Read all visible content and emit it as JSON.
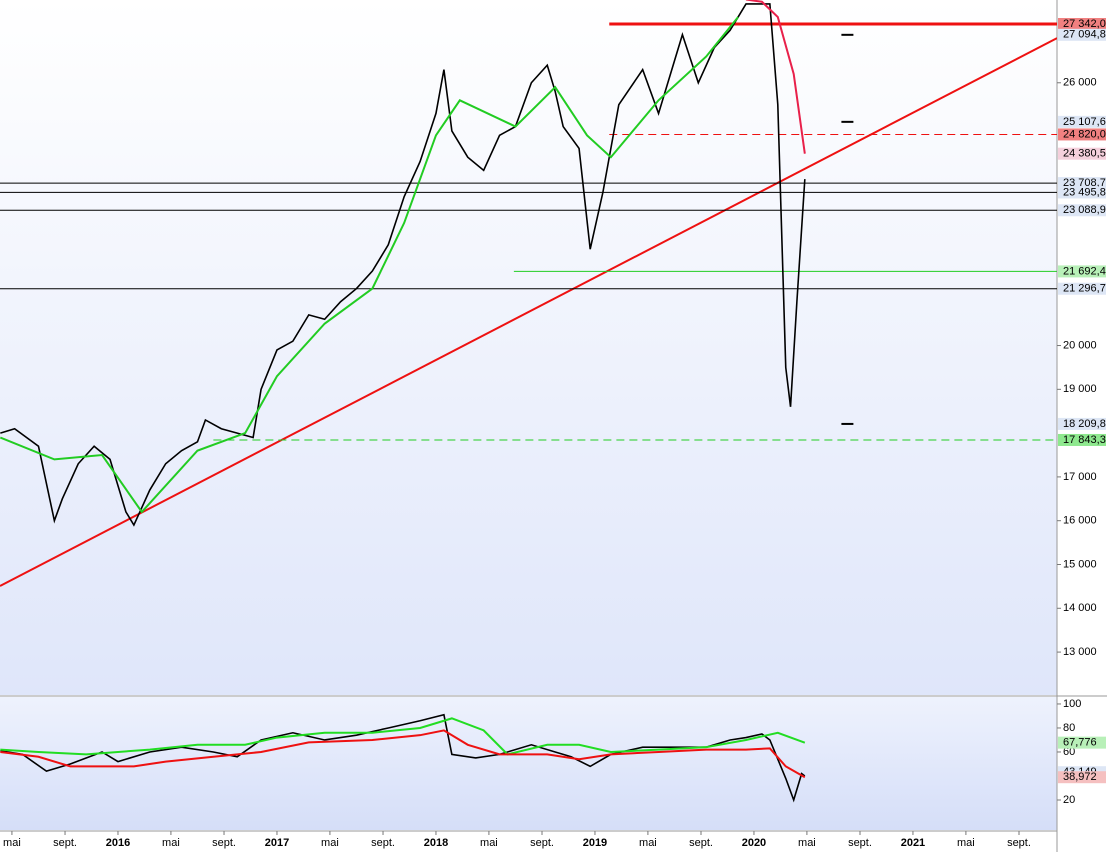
{
  "chart_data": [
    {
      "type": "line",
      "xlim": [
        2015.258,
        2021.906
      ],
      "ylim": [
        12020,
        27890
      ],
      "yticks": [
        {
          "value": 13000,
          "label": "13 000"
        },
        {
          "value": 14000,
          "label": "14 000"
        },
        {
          "value": 15000,
          "label": "15 000"
        },
        {
          "value": 16000,
          "label": "16 000"
        },
        {
          "value": 17000,
          "label": "17 000"
        },
        {
          "value": 19000,
          "label": "19 000"
        },
        {
          "value": 20000,
          "label": "20 000"
        },
        {
          "value": 26000,
          "label": "26 000"
        }
      ],
      "series": [
        {
          "name": "price",
          "color": "#000000",
          "x": [
            2015.26,
            2015.35,
            2015.5,
            2015.6,
            2015.65,
            2015.75,
            2015.85,
            2015.95,
            2016.05,
            2016.1,
            2016.2,
            2016.3,
            2016.4,
            2016.5,
            2016.55,
            2016.65,
            2016.75,
            2016.85,
            2016.9,
            2017.0,
            2017.1,
            2017.2,
            2017.3,
            2017.4,
            2017.5,
            2017.6,
            2017.7,
            2017.8,
            2017.9,
            2018.0,
            2018.05,
            2018.1,
            2018.2,
            2018.3,
            2018.4,
            2018.5,
            2018.6,
            2018.7,
            2018.75,
            2018.8,
            2018.9,
            2018.97,
            2019.05,
            2019.15,
            2019.3,
            2019.4,
            2019.5,
            2019.55,
            2019.65,
            2019.75,
            2019.85,
            2019.95,
            2020.1,
            2020.15,
            2020.2,
            2020.23,
            2020.27,
            2020.32
          ],
          "values": [
            18000,
            18100,
            17700,
            16000,
            16500,
            17300,
            17700,
            17400,
            16200,
            15900,
            16700,
            17300,
            17600,
            17800,
            18300,
            18100,
            18000,
            17900,
            19000,
            19900,
            20100,
            20700,
            20600,
            21000,
            21300,
            21700,
            22300,
            23400,
            24200,
            25300,
            26300,
            24900,
            24300,
            24000,
            24800,
            25000,
            26000,
            26400,
            25800,
            25000,
            24500,
            22200,
            23500,
            25500,
            26300,
            25300,
            26500,
            27100,
            26000,
            26800,
            27200,
            27800,
            27800,
            25500,
            19500,
            18600,
            21000,
            23800
          ]
        },
        {
          "name": "ma",
          "color": "#22cc22",
          "x": [
            2015.26,
            2015.6,
            2015.9,
            2016.15,
            2016.5,
            2016.8,
            2017.0,
            2017.3,
            2017.6,
            2017.8,
            2018.0,
            2018.15,
            2018.5,
            2018.75,
            2018.95,
            2019.1,
            2019.4,
            2019.7,
            2019.9
          ],
          "values": [
            17900,
            17400,
            17500,
            16200,
            17600,
            18000,
            19300,
            20500,
            21300,
            22800,
            24800,
            25600,
            25000,
            25900,
            24800,
            24300,
            25600,
            26600,
            27500
          ]
        },
        {
          "name": "ma-down",
          "color": "#e8204a",
          "x": [
            2019.95,
            2020.05,
            2020.15,
            2020.25,
            2020.32
          ],
          "values": [
            27900,
            27850,
            27500,
            26200,
            24380.5
          ]
        }
      ],
      "trendline": {
        "x": [
          2015.258,
          2021.906
        ],
        "values": [
          14510,
          27020
        ],
        "color": "#ee1111"
      },
      "levels": [
        {
          "value": 27342.0,
          "label": "27 342,0",
          "color": "#ee1111",
          "from": 2019.09,
          "style": "thick",
          "bg": "#f08080"
        },
        {
          "value": 27094.8,
          "label": "27 094,8",
          "color": "#000000",
          "from": 2020.55,
          "style": "tick",
          "bg": "#dde6f5"
        },
        {
          "value": 25107.6,
          "label": "25 107,6",
          "color": "#000000",
          "from": 2020.55,
          "style": "tick",
          "bg": "#dde6f5"
        },
        {
          "value": 24820.0,
          "label": "24 820,0",
          "color": "#ee1111",
          "from": 2019.09,
          "style": "dashed",
          "bg": "#f08080"
        },
        {
          "value": 24380.5,
          "label": "24 380,5",
          "color": "#e8204a",
          "from": 2021.906,
          "style": "none",
          "bg": "#f5d0dc"
        },
        {
          "value": 23708.7,
          "label": "23 708,7",
          "color": "#000000",
          "from": 2015.258,
          "style": "solid",
          "bg": "#dde6f5"
        },
        {
          "value": 23495.8,
          "label": "23 495,8",
          "color": "#000000",
          "from": 2015.258,
          "style": "solid",
          "bg": "#dde6f5"
        },
        {
          "value": 23088.9,
          "label": "23 088,9",
          "color": "#000000",
          "from": 2015.258,
          "style": "solid",
          "bg": "#dde6f5"
        },
        {
          "value": 21692.4,
          "label": "21 692,4",
          "color": "#22cc22",
          "from": 2018.49,
          "style": "solid",
          "bg": "#b8f0b8"
        },
        {
          "value": 21296.7,
          "label": "21 296,7",
          "color": "#000000",
          "from": 2015.258,
          "style": "solid",
          "bg": "#dde6f5"
        },
        {
          "value": 18209.8,
          "label": "18 209,8",
          "color": "#000000",
          "from": 2020.55,
          "style": "tick",
          "bg": "#dde6f5"
        },
        {
          "value": 17843.3,
          "label": "17 843,3",
          "color": "#22cc22",
          "from": 2016.6,
          "style": "dashed",
          "bg": "#8ee88e"
        }
      ]
    },
    {
      "type": "line",
      "xlim": [
        2015.258,
        2021.906
      ],
      "ylim": [
        -5,
        105.8
      ],
      "yticks": [
        20,
        60,
        80,
        100
      ],
      "xticks": [
        {
          "value": 2015.333,
          "label": "mai"
        },
        {
          "value": 2015.667,
          "label": "sept."
        },
        {
          "value": 2016,
          "label": "2016"
        },
        {
          "value": 2016.333,
          "label": "mai"
        },
        {
          "value": 2016.667,
          "label": "sept."
        },
        {
          "value": 2017,
          "label": "2017"
        },
        {
          "value": 2017.333,
          "label": "mai"
        },
        {
          "value": 2017.667,
          "label": "sept."
        },
        {
          "value": 2018,
          "label": "2018"
        },
        {
          "value": 2018.333,
          "label": "mai"
        },
        {
          "value": 2018.667,
          "label": "sept."
        },
        {
          "value": 2019,
          "label": "2019"
        },
        {
          "value": 2019.333,
          "label": "mai"
        },
        {
          "value": 2019.667,
          "label": "sept."
        },
        {
          "value": 2020,
          "label": "2020"
        },
        {
          "value": 2020.333,
          "label": "mai"
        },
        {
          "value": 2020.667,
          "label": "sept."
        },
        {
          "value": 2021,
          "label": "2021"
        },
        {
          "value": 2021.333,
          "label": "mai"
        },
        {
          "value": 2021.667,
          "label": "sept."
        }
      ],
      "series": [
        {
          "name": "oscillator",
          "color": "#000000",
          "x": [
            2015.26,
            2015.4,
            2015.55,
            2015.7,
            2015.9,
            2016.0,
            2016.2,
            2016.4,
            2016.6,
            2016.75,
            2016.9,
            2017.1,
            2017.3,
            2017.5,
            2017.7,
            2017.9,
            2018.05,
            2018.1,
            2018.25,
            2018.4,
            2018.6,
            2018.75,
            2018.85,
            2018.97,
            2019.1,
            2019.3,
            2019.5,
            2019.7,
            2019.85,
            2019.95,
            2020.05,
            2020.1,
            2020.2,
            2020.25,
            2020.3,
            2020.32
          ],
          "values": [
            61,
            58,
            44,
            50,
            60,
            52,
            60,
            64,
            60,
            56,
            70,
            76,
            70,
            74,
            80,
            86,
            91,
            58,
            55,
            58,
            66,
            60,
            56,
            48,
            58,
            64,
            64,
            64,
            70,
            72,
            75,
            70,
            38,
            20,
            42,
            40
          ]
        },
        {
          "name": "signal",
          "color": "#22dd22",
          "x": [
            2015.26,
            2015.5,
            2015.8,
            2016.2,
            2016.5,
            2016.8,
            2017.0,
            2017.3,
            2017.6,
            2017.9,
            2018.1,
            2018.3,
            2018.45,
            2018.7,
            2018.9,
            2019.1,
            2019.4,
            2019.7,
            2019.95,
            2020.15,
            2020.32
          ],
          "values": [
            62,
            60,
            58,
            62,
            66,
            66,
            72,
            76,
            76,
            80,
            88,
            78,
            58,
            66,
            66,
            60,
            62,
            64,
            70,
            76,
            67.776
          ]
        },
        {
          "name": "average",
          "color": "#ee1111",
          "x": [
            2015.26,
            2015.5,
            2015.7,
            2016.1,
            2016.3,
            2016.6,
            2016.9,
            2017.2,
            2017.6,
            2017.9,
            2018.05,
            2018.2,
            2018.4,
            2018.7,
            2018.9,
            2019.1,
            2019.4,
            2019.7,
            2019.95,
            2020.1,
            2020.2,
            2020.32
          ],
          "values": [
            60,
            56,
            48,
            48,
            52,
            56,
            60,
            68,
            70,
            74,
            78,
            66,
            58,
            58,
            54,
            58,
            60,
            62,
            62,
            63,
            48,
            38.972
          ]
        }
      ],
      "levels": [
        {
          "value": 67.776,
          "label": "67,776",
          "color": "#22dd22",
          "bg": "#b8f0b8"
        },
        {
          "value": 43.149,
          "label": "43,149",
          "color": "#000000",
          "bg": "#dde6f5"
        },
        {
          "value": 38.972,
          "label": "38,972",
          "color": "#ee1111",
          "bg": "#f5c0c0"
        }
      ]
    }
  ]
}
